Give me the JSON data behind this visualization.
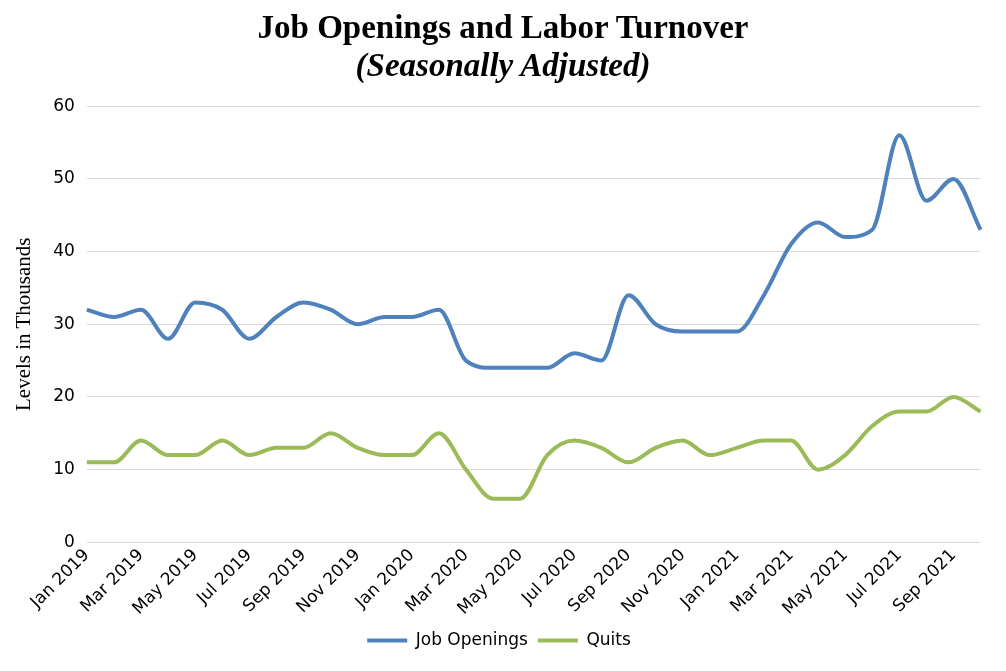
{
  "chart_data": {
    "type": "line",
    "title": "Job Openings and Labor Turnover",
    "subtitle": "(Seasonally Adjusted)",
    "ylabel": "Levels in Thousands",
    "categories": [
      "Jan 2019",
      null,
      "Mar 2019",
      null,
      "May 2019",
      null,
      "Jul 2019",
      null,
      "Sep 2019",
      null,
      "Nov 2019",
      null,
      "Jan 2020",
      null,
      "Mar 2020",
      null,
      "May 2020",
      null,
      "Jul 2020",
      null,
      "Sep 2020",
      null,
      "Nov 2020",
      null,
      "Jan 2021",
      null,
      "Mar 2021",
      null,
      "May 2021",
      null,
      "Jul 2021",
      null,
      "Sep 2021",
      null
    ],
    "series": [
      {
        "name": "Job Openings",
        "color": "#4f81bd",
        "values": [
          32,
          31,
          32,
          28,
          33,
          32,
          28,
          31,
          33,
          32,
          30,
          31,
          31,
          32,
          25,
          24,
          24,
          24,
          26,
          25,
          34,
          30,
          29,
          29,
          29,
          34,
          41,
          44,
          42,
          43,
          56,
          47,
          50,
          43
        ]
      },
      {
        "name": "Quits",
        "color": "#9bbb59",
        "values": [
          11,
          11,
          14,
          12,
          12,
          14,
          12,
          13,
          13,
          15,
          13,
          12,
          12,
          15,
          10,
          6,
          6,
          12,
          14,
          13,
          11,
          13,
          14,
          12,
          13,
          14,
          14,
          10,
          12,
          16,
          18,
          18,
          20,
          18
        ]
      }
    ],
    "ylim": [
      0,
      60
    ],
    "yticks": [
      0,
      10,
      20,
      30,
      40,
      50,
      60
    ],
    "grid": "y",
    "legend": "bottom",
    "marker": "none",
    "line_style": "solid"
  }
}
